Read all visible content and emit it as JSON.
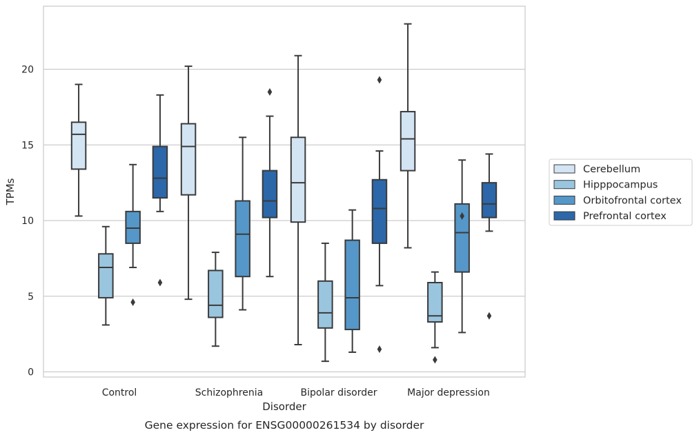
{
  "chart_data": {
    "type": "boxplot",
    "title": "",
    "caption": "Gene expression for ENSG00000261534 by disorder",
    "xlabel": "Disorder",
    "ylabel": "TPMs",
    "ylim": [
      -0.4,
      24.2
    ],
    "yticks": [
      0,
      5,
      10,
      15,
      20
    ],
    "grid": "horizontal",
    "legend_position": "right",
    "categories": [
      "Control",
      "Schizophrenia",
      "Bipolar disorder",
      "Major depression"
    ],
    "series": [
      {
        "name": "Cerebellum",
        "color": "#d3e4f3",
        "boxes": [
          {
            "whislo": 10.3,
            "q1": 13.4,
            "med": 15.7,
            "q3": 16.5,
            "whishi": 19.0,
            "fliers": []
          },
          {
            "whislo": 4.8,
            "q1": 11.7,
            "med": 14.9,
            "q3": 16.4,
            "whishi": 20.2,
            "fliers": []
          },
          {
            "whislo": 1.8,
            "q1": 9.9,
            "med": 12.5,
            "q3": 15.5,
            "whishi": 20.9,
            "fliers": []
          },
          {
            "whislo": 8.2,
            "q1": 13.3,
            "med": 15.4,
            "q3": 17.2,
            "whishi": 23.0,
            "fliers": []
          }
        ]
      },
      {
        "name": "Hipppocampus",
        "color": "#9ac5df",
        "boxes": [
          {
            "whislo": 3.1,
            "q1": 4.9,
            "med": 6.9,
            "q3": 7.8,
            "whishi": 9.6,
            "fliers": []
          },
          {
            "whislo": 1.7,
            "q1": 3.6,
            "med": 4.4,
            "q3": 6.7,
            "whishi": 7.9,
            "fliers": []
          },
          {
            "whislo": 0.7,
            "q1": 2.9,
            "med": 3.9,
            "q3": 6.0,
            "whishi": 8.5,
            "fliers": []
          },
          {
            "whislo": 1.6,
            "q1": 3.3,
            "med": 3.7,
            "q3": 5.9,
            "whishi": 6.6,
            "fliers": [
              0.8
            ]
          }
        ]
      },
      {
        "name": "Orbitofrontal cortex",
        "color": "#5597c9",
        "boxes": [
          {
            "whislo": 6.9,
            "q1": 8.5,
            "med": 9.5,
            "q3": 10.6,
            "whishi": 13.7,
            "fliers": [
              4.6
            ]
          },
          {
            "whislo": 4.1,
            "q1": 6.3,
            "med": 9.1,
            "q3": 11.3,
            "whishi": 15.5,
            "fliers": []
          },
          {
            "whislo": 1.3,
            "q1": 2.8,
            "med": 4.9,
            "q3": 8.7,
            "whishi": 10.7,
            "fliers": []
          },
          {
            "whislo": 2.6,
            "q1": 6.6,
            "med": 9.2,
            "q3": 11.1,
            "whishi": 14.0,
            "fliers": [
              10.3
            ]
          }
        ]
      },
      {
        "name": "Prefrontal cortex",
        "color": "#2b67a9",
        "boxes": [
          {
            "whislo": 10.6,
            "q1": 11.5,
            "med": 12.8,
            "q3": 14.9,
            "whishi": 18.3,
            "fliers": [
              5.9
            ]
          },
          {
            "whislo": 6.3,
            "q1": 10.2,
            "med": 11.3,
            "q3": 13.3,
            "whishi": 16.9,
            "fliers": [
              18.5
            ]
          },
          {
            "whislo": 5.7,
            "q1": 8.5,
            "med": 10.8,
            "q3": 12.7,
            "whishi": 14.6,
            "fliers": [
              1.5,
              19.3
            ]
          },
          {
            "whislo": 9.3,
            "q1": 10.2,
            "med": 11.1,
            "q3": 12.5,
            "whishi": 14.4,
            "fliers": [
              3.7
            ]
          }
        ]
      }
    ]
  }
}
